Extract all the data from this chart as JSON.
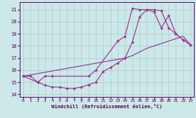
{
  "xlabel": "Windchill (Refroidissement éolien,°C)",
  "background_color": "#cce8e8",
  "grid_color": "#aacccc",
  "line_color": "#993399",
  "xlim": [
    -0.5,
    23.5
  ],
  "ylim": [
    13.8,
    21.6
  ],
  "yticks": [
    14,
    15,
    16,
    17,
    18,
    19,
    20,
    21
  ],
  "xticks": [
    0,
    1,
    2,
    3,
    4,
    5,
    6,
    7,
    8,
    9,
    10,
    11,
    12,
    13,
    14,
    15,
    16,
    17,
    18,
    19,
    20,
    21,
    22,
    23
  ],
  "curve1_x": [
    0,
    1,
    2,
    3,
    4,
    5,
    6,
    7,
    8,
    9,
    10,
    11,
    12,
    13,
    14,
    15,
    16,
    17,
    18,
    19,
    20,
    21,
    22,
    23
  ],
  "curve1_y": [
    15.5,
    15.5,
    15.0,
    14.75,
    14.6,
    14.6,
    14.5,
    14.5,
    14.6,
    14.8,
    15.0,
    15.9,
    16.2,
    16.6,
    17.0,
    18.3,
    20.4,
    21.0,
    21.0,
    20.9,
    19.5,
    19.0,
    18.5,
    18.1
  ],
  "curve2_x": [
    0,
    2,
    3,
    4,
    9,
    10,
    13,
    14,
    15,
    16,
    17,
    18,
    19,
    20,
    21,
    22,
    23
  ],
  "curve2_y": [
    15.5,
    15.0,
    15.5,
    15.5,
    15.5,
    16.0,
    18.4,
    18.8,
    21.1,
    21.0,
    21.0,
    20.8,
    19.5,
    20.5,
    19.0,
    18.5,
    18.1
  ],
  "curve3_x": [
    0,
    14,
    15,
    16,
    17,
    18,
    19,
    20,
    21,
    22,
    23
  ],
  "curve3_y": [
    15.5,
    17.0,
    17.2,
    17.5,
    17.8,
    18.0,
    18.2,
    18.4,
    18.6,
    18.8,
    18.1
  ]
}
